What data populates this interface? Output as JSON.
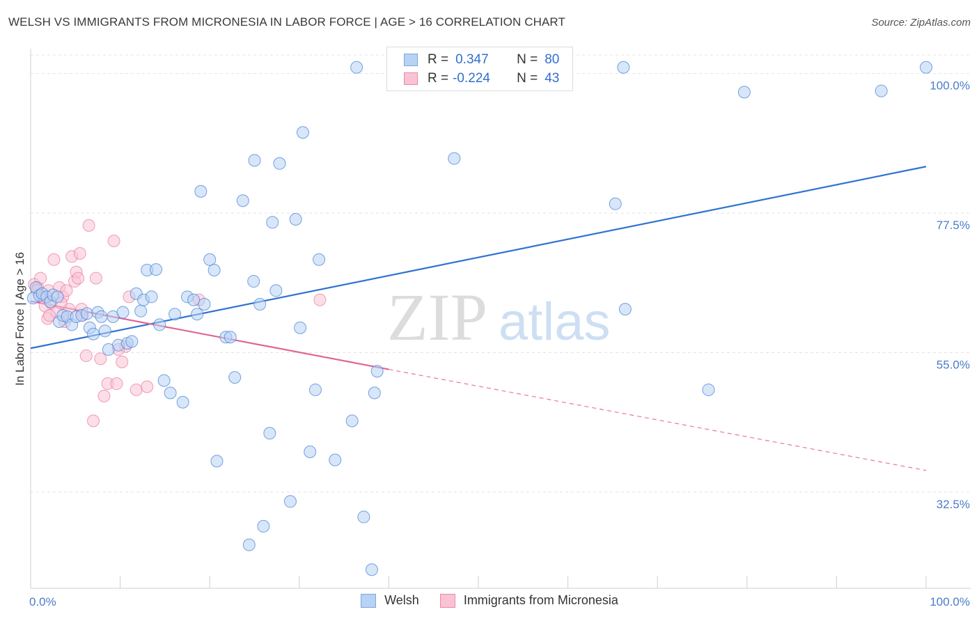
{
  "header": {
    "title": "WELSH VS IMMIGRANTS FROM MICRONESIA IN LABOR FORCE | AGE > 16 CORRELATION CHART",
    "source": "Source: ZipAtlas.com"
  },
  "watermark": {
    "zip": "ZIP",
    "atlas": "atlas"
  },
  "legend": {
    "rows": [
      {
        "r_label": "R =",
        "r_value": "0.347",
        "n_label": "N =",
        "n_value": "80",
        "fill": "#b7d2f4",
        "stroke": "#7aa6e0"
      },
      {
        "r_label": "R =",
        "r_value": "-0.224",
        "n_label": "N =",
        "n_value": "43",
        "fill": "#f9c3d3",
        "stroke": "#e98aa8"
      }
    ]
  },
  "bottom_legend": [
    {
      "label": "Welsh",
      "fill": "#b7d2f4",
      "stroke": "#7aa6e0"
    },
    {
      "label": "Immigrants from Micronesia",
      "fill": "#f9c3d3",
      "stroke": "#e98aa8"
    }
  ],
  "chart_data": {
    "type": "scatter",
    "ylabel": "In Labor Force | Age > 16",
    "xlim": [
      0,
      100
    ],
    "ylim": [
      17,
      104
    ],
    "x_tick_labels": [
      "0.0%",
      "100.0%"
    ],
    "y_ticks": [
      {
        "value": 32.5,
        "label": "32.5%"
      },
      {
        "value": 55.0,
        "label": "55.0%"
      },
      {
        "value": 77.5,
        "label": "77.5%"
      },
      {
        "value": 100.0,
        "label": "100.0%"
      }
    ],
    "grid": true,
    "colors": {
      "welsh": "#4a84d6",
      "micronesia": "#e8769c",
      "welsh_fill": "#b7d2f4",
      "micronesia_fill": "#f9c3d3"
    },
    "series": [
      {
        "name": "Welsh",
        "trend": {
          "x": [
            0,
            100
          ],
          "y": [
            55.7,
            85.0
          ],
          "style": "solid"
        },
        "points": [
          {
            "x": 0.3,
            "y": 63.8
          },
          {
            "x": 0.6,
            "y": 65.5
          },
          {
            "x": 1.0,
            "y": 64.2
          },
          {
            "x": 1.3,
            "y": 64.5
          },
          {
            "x": 1.8,
            "y": 64.0
          },
          {
            "x": 2.2,
            "y": 63.2
          },
          {
            "x": 2.5,
            "y": 64.3
          },
          {
            "x": 3.0,
            "y": 64.0
          },
          {
            "x": 3.2,
            "y": 60.0
          },
          {
            "x": 3.6,
            "y": 61.0
          },
          {
            "x": 4.1,
            "y": 60.8
          },
          {
            "x": 4.6,
            "y": 59.5
          },
          {
            "x": 5.1,
            "y": 60.8
          },
          {
            "x": 5.7,
            "y": 61.0
          },
          {
            "x": 6.3,
            "y": 61.3
          },
          {
            "x": 6.6,
            "y": 59.0
          },
          {
            "x": 7.0,
            "y": 58.0
          },
          {
            "x": 7.5,
            "y": 61.5
          },
          {
            "x": 7.9,
            "y": 60.8
          },
          {
            "x": 8.3,
            "y": 58.5
          },
          {
            "x": 8.7,
            "y": 55.5
          },
          {
            "x": 9.2,
            "y": 60.8
          },
          {
            "x": 9.8,
            "y": 56.2
          },
          {
            "x": 10.3,
            "y": 61.5
          },
          {
            "x": 10.8,
            "y": 56.5
          },
          {
            "x": 11.3,
            "y": 56.8
          },
          {
            "x": 11.8,
            "y": 64.5
          },
          {
            "x": 12.3,
            "y": 61.7
          },
          {
            "x": 12.6,
            "y": 63.5
          },
          {
            "x": 13.0,
            "y": 68.3
          },
          {
            "x": 13.5,
            "y": 64.0
          },
          {
            "x": 14.0,
            "y": 68.4
          },
          {
            "x": 14.4,
            "y": 59.5
          },
          {
            "x": 14.9,
            "y": 50.5
          },
          {
            "x": 15.6,
            "y": 48.5
          },
          {
            "x": 16.1,
            "y": 61.2
          },
          {
            "x": 17.0,
            "y": 47.0
          },
          {
            "x": 17.5,
            "y": 64.0
          },
          {
            "x": 18.2,
            "y": 63.5
          },
          {
            "x": 18.6,
            "y": 61.2
          },
          {
            "x": 19.0,
            "y": 81.0
          },
          {
            "x": 19.4,
            "y": 62.8
          },
          {
            "x": 20.0,
            "y": 70.0
          },
          {
            "x": 20.5,
            "y": 68.3
          },
          {
            "x": 20.8,
            "y": 37.5
          },
          {
            "x": 21.8,
            "y": 57.5
          },
          {
            "x": 22.3,
            "y": 57.5
          },
          {
            "x": 22.8,
            "y": 51.0
          },
          {
            "x": 23.7,
            "y": 79.5
          },
          {
            "x": 24.4,
            "y": 24.0
          },
          {
            "x": 24.9,
            "y": 66.5
          },
          {
            "x": 25.0,
            "y": 86.0
          },
          {
            "x": 25.6,
            "y": 62.8
          },
          {
            "x": 26.0,
            "y": 27.0
          },
          {
            "x": 26.7,
            "y": 42.0
          },
          {
            "x": 27.0,
            "y": 76.0
          },
          {
            "x": 27.4,
            "y": 65.0
          },
          {
            "x": 27.8,
            "y": 85.5
          },
          {
            "x": 29.0,
            "y": 31.0
          },
          {
            "x": 29.6,
            "y": 76.5
          },
          {
            "x": 30.1,
            "y": 59.0
          },
          {
            "x": 30.4,
            "y": 90.5
          },
          {
            "x": 31.2,
            "y": 39.0
          },
          {
            "x": 31.8,
            "y": 49.0
          },
          {
            "x": 32.2,
            "y": 70.0
          },
          {
            "x": 34.0,
            "y": 37.7
          },
          {
            "x": 35.9,
            "y": 44.0
          },
          {
            "x": 36.4,
            "y": 101.0
          },
          {
            "x": 37.2,
            "y": 28.5
          },
          {
            "x": 38.1,
            "y": 20.0
          },
          {
            "x": 38.4,
            "y": 48.5
          },
          {
            "x": 38.7,
            "y": 52.0
          },
          {
            "x": 41.0,
            "y": 101.0
          },
          {
            "x": 47.3,
            "y": 86.3
          },
          {
            "x": 65.3,
            "y": 79.0
          },
          {
            "x": 66.2,
            "y": 101.0
          },
          {
            "x": 66.4,
            "y": 62.0
          },
          {
            "x": 75.7,
            "y": 49.0
          },
          {
            "x": 79.7,
            "y": 97.0
          },
          {
            "x": 95.0,
            "y": 97.2
          },
          {
            "x": 100.0,
            "y": 101.0
          }
        ]
      },
      {
        "name": "Immigrants from Micronesia",
        "trend": {
          "x": [
            0,
            40
          ],
          "y": [
            63.3,
            52.3
          ],
          "style": "solid",
          "extend_to": [
            100,
            36.0
          ]
        },
        "points": [
          {
            "x": 0.4,
            "y": 66.0
          },
          {
            "x": 0.8,
            "y": 65.5
          },
          {
            "x": 1.1,
            "y": 67.0
          },
          {
            "x": 1.3,
            "y": 64.0
          },
          {
            "x": 1.6,
            "y": 62.5
          },
          {
            "x": 1.9,
            "y": 60.5
          },
          {
            "x": 2.0,
            "y": 65.0
          },
          {
            "x": 2.3,
            "y": 63.0
          },
          {
            "x": 2.6,
            "y": 70.0
          },
          {
            "x": 2.9,
            "y": 61.5
          },
          {
            "x": 3.2,
            "y": 65.5
          },
          {
            "x": 3.6,
            "y": 64.0
          },
          {
            "x": 3.8,
            "y": 60.0
          },
          {
            "x": 4.0,
            "y": 65.0
          },
          {
            "x": 4.3,
            "y": 62.0
          },
          {
            "x": 4.6,
            "y": 70.5
          },
          {
            "x": 4.9,
            "y": 66.5
          },
          {
            "x": 5.1,
            "y": 68.0
          },
          {
            "x": 5.5,
            "y": 71.0
          },
          {
            "x": 5.8,
            "y": 61.0
          },
          {
            "x": 6.2,
            "y": 54.5
          },
          {
            "x": 5.3,
            "y": 67.0
          },
          {
            "x": 5.7,
            "y": 62.0
          },
          {
            "x": 6.5,
            "y": 75.5
          },
          {
            "x": 7.3,
            "y": 67.0
          },
          {
            "x": 7.8,
            "y": 54.0
          },
          {
            "x": 8.2,
            "y": 48.0
          },
          {
            "x": 8.6,
            "y": 50.0
          },
          {
            "x": 9.3,
            "y": 73.0
          },
          {
            "x": 9.6,
            "y": 50.0
          },
          {
            "x": 10.2,
            "y": 53.5
          },
          {
            "x": 10.6,
            "y": 56.0
          },
          {
            "x": 11.0,
            "y": 64.0
          },
          {
            "x": 11.8,
            "y": 49.0
          },
          {
            "x": 13.0,
            "y": 49.5
          },
          {
            "x": 7.0,
            "y": 44.0
          },
          {
            "x": 3.4,
            "y": 63.0
          },
          {
            "x": 2.1,
            "y": 61.0
          },
          {
            "x": 0.7,
            "y": 65.0
          },
          {
            "x": 1.5,
            "y": 63.8
          },
          {
            "x": 18.8,
            "y": 63.5
          },
          {
            "x": 32.3,
            "y": 63.5
          },
          {
            "x": 9.8,
            "y": 55.5
          }
        ]
      }
    ]
  }
}
